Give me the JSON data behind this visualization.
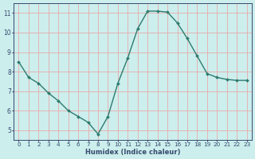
{
  "x": [
    0,
    1,
    2,
    3,
    4,
    5,
    6,
    7,
    8,
    9,
    10,
    11,
    12,
    13,
    14,
    15,
    16,
    17,
    18,
    19,
    20,
    21,
    22,
    23
  ],
  "y": [
    8.5,
    7.7,
    7.4,
    6.9,
    6.5,
    6.0,
    5.7,
    5.4,
    4.8,
    5.7,
    7.4,
    8.7,
    10.2,
    11.1,
    11.1,
    11.05,
    10.5,
    9.7,
    8.8,
    7.9,
    7.7,
    7.6,
    7.55,
    7.55
  ],
  "line_color": "#2d7b6e",
  "marker": "D",
  "marker_size": 2.0,
  "bg_color": "#cceeed",
  "grid_color": "#e8aaaa",
  "xlabel": "Humidex (Indice chaleur)",
  "xlabel_color": "#374a6e",
  "tick_color": "#374a6e",
  "axis_color": "#374a6e",
  "ylim": [
    4.5,
    11.5
  ],
  "yticks": [
    5,
    6,
    7,
    8,
    9,
    10,
    11
  ],
  "xlim": [
    -0.5,
    23.5
  ],
  "xticks": [
    0,
    1,
    2,
    3,
    4,
    5,
    6,
    7,
    8,
    9,
    10,
    11,
    12,
    13,
    14,
    15,
    16,
    17,
    18,
    19,
    20,
    21,
    22,
    23
  ],
  "xlabel_fontsize": 6.0,
  "tick_fontsize": 5.2
}
